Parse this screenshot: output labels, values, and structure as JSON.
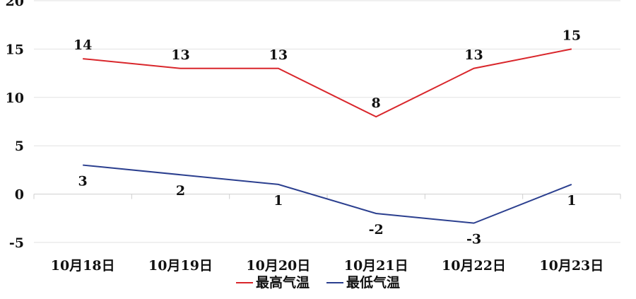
{
  "chart_data": {
    "type": "line",
    "categories": [
      "10月18日",
      "10月19日",
      "10月20日",
      "10月21日",
      "10月22日",
      "10月23日"
    ],
    "series": [
      {
        "name": "最高气温",
        "color": "#d9262b",
        "values": [
          14,
          13,
          13,
          8,
          13,
          15
        ]
      },
      {
        "name": "最低气温",
        "color": "#2b3f8f",
        "values": [
          3,
          2,
          1,
          -2,
          -3,
          1
        ]
      }
    ],
    "ylim": [
      -5,
      20
    ],
    "yticks": [
      "-5",
      "0",
      "5",
      "10",
      "15",
      "20"
    ],
    "grid": true,
    "legend_position": "bottom"
  }
}
